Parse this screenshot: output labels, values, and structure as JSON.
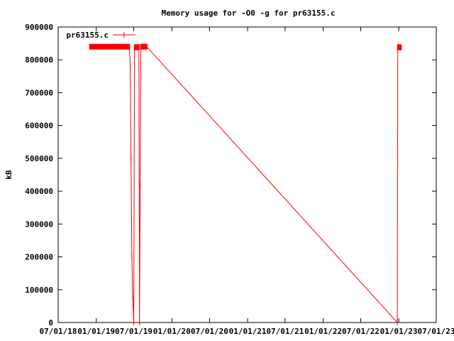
{
  "chart_data": {
    "type": "line",
    "title": "Memory usage for -O0 -g for pr63155.c",
    "xlabel": "",
    "ylabel": "kB",
    "ylim": [
      0,
      900000
    ],
    "yticks": [
      0,
      100000,
      200000,
      300000,
      400000,
      500000,
      600000,
      700000,
      800000,
      900000
    ],
    "ytick_labels": [
      "0",
      "100000",
      "200000",
      "300000",
      "400000",
      "500000",
      "600000",
      "700000",
      "800000",
      "900000"
    ],
    "xlim": [
      "2018-07-01",
      "2023-07-01"
    ],
    "xticks": [
      "2018-07-01",
      "2019-01-01",
      "2019-07-01",
      "2020-01-01",
      "2020-07-01",
      "2021-01-01",
      "2021-07-01",
      "2022-01-01",
      "2022-07-01",
      "2023-01-01",
      "2023-07-01"
    ],
    "xtick_labels": [
      "07/01/18",
      "01/01/19",
      "07/01/19",
      "01/01/20",
      "07/01/20",
      "01/01/21",
      "07/01/21",
      "01/01/22",
      "07/01/22",
      "01/01/23",
      "07/01/23"
    ],
    "grid": false,
    "legend_position": "top-left",
    "series": [
      {
        "name": "pr63155.c",
        "color": "#ff0000",
        "x": [
          "2018-12-01",
          "2018-12-20",
          "2019-01-10",
          "2019-02-01",
          "2019-02-20",
          "2019-03-10",
          "2019-04-01",
          "2019-04-20",
          "2019-05-10",
          "2019-05-28",
          "2019-06-10",
          "2019-06-14",
          "2019-06-18",
          "2019-06-22",
          "2019-06-26",
          "2019-07-01",
          "2019-07-05",
          "2019-07-10",
          "2019-07-20",
          "2019-07-26",
          "2019-07-29",
          "2019-08-01",
          "2019-08-04",
          "2019-08-08",
          "2019-08-12",
          "2019-08-16",
          "2019-08-20",
          "2019-08-24",
          "2019-08-28",
          "2019-09-02",
          "2022-12-25",
          "2022-12-27",
          "2022-12-29",
          "2023-01-01",
          "2023-01-04",
          "2023-01-08",
          "2023-01-12"
        ],
        "values": [
          840000,
          840000,
          840000,
          840000,
          840000,
          840000,
          840000,
          840000,
          840000,
          840000,
          840000,
          780000,
          500000,
          200000,
          80000,
          0,
          838000,
          840000,
          840000,
          840000,
          0,
          420000,
          840000,
          840000,
          840000,
          840000,
          840000,
          840000,
          840000,
          840000,
          0,
          838000,
          840000,
          840000,
          838000,
          838000,
          838000
        ]
      }
    ]
  }
}
